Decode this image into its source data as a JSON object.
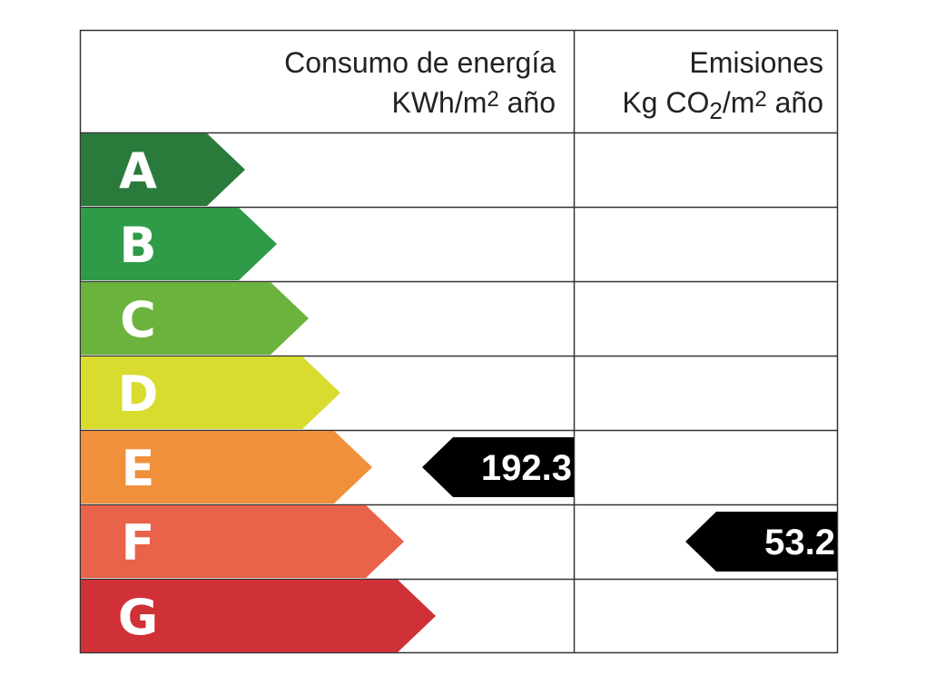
{
  "energy": {
    "title": "Consumo de energía",
    "unit": [
      "KWh/m",
      "2",
      " año"
    ],
    "class": "E",
    "value": 192.3
  },
  "emissions": {
    "title": "Emisiones",
    "unit": [
      "Kg CO",
      "2",
      "/m",
      "2",
      " año"
    ],
    "class": "F",
    "value": 53.2
  },
  "classes": [
    "A",
    "B",
    "C",
    "D",
    "E",
    "F",
    "G"
  ],
  "colors": [
    "#2a7a3c",
    "#2f9a47",
    "#6cb33e",
    "#d8dc2f",
    "#f0903b",
    "#e9624a",
    "#cf3137"
  ]
}
